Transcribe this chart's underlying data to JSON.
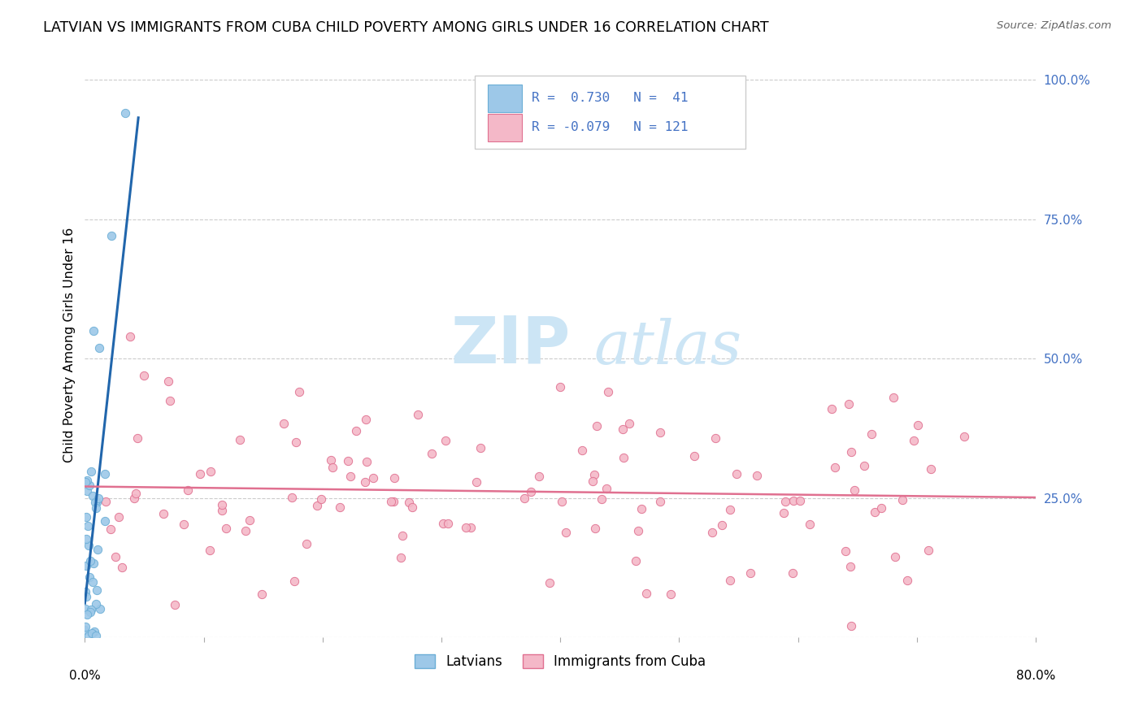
{
  "title": "LATVIAN VS IMMIGRANTS FROM CUBA CHILD POVERTY AMONG GIRLS UNDER 16 CORRELATION CHART",
  "source": "Source: ZipAtlas.com",
  "ylabel": "Child Poverty Among Girls Under 16",
  "legend_label_1": "Latvians",
  "legend_label_2": "Immigrants from Cuba",
  "r1": 0.73,
  "n1": 41,
  "r2": -0.079,
  "n2": 121,
  "color_latvian_fill": "#9dc8e8",
  "color_latvian_edge": "#6baed6",
  "color_cuba_fill": "#f4b8c8",
  "color_cuba_edge": "#e07090",
  "color_line_latvian": "#2166ac",
  "color_line_cuba": "#e07090",
  "watermark_zip": "ZIP",
  "watermark_atlas": "atlas",
  "watermark_color": "#cce5f5",
  "background_color": "#ffffff",
  "grid_color": "#cccccc",
  "ytick_color": "#4472c4",
  "legend_text_color": "#4472c4"
}
